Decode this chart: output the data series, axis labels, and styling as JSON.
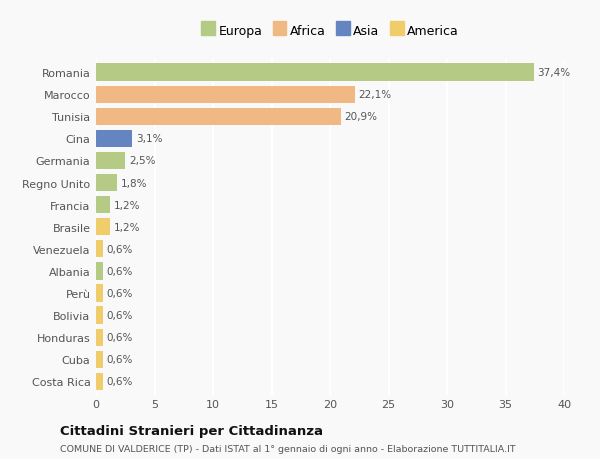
{
  "countries": [
    "Romania",
    "Marocco",
    "Tunisia",
    "Cina",
    "Germania",
    "Regno Unito",
    "Francia",
    "Brasile",
    "Venezuela",
    "Albania",
    "Perù",
    "Bolivia",
    "Honduras",
    "Cuba",
    "Costa Rica"
  ],
  "values": [
    37.4,
    22.1,
    20.9,
    3.1,
    2.5,
    1.8,
    1.2,
    1.2,
    0.6,
    0.6,
    0.6,
    0.6,
    0.6,
    0.6,
    0.6
  ],
  "labels": [
    "37,4%",
    "22,1%",
    "20,9%",
    "3,1%",
    "2,5%",
    "1,8%",
    "1,2%",
    "1,2%",
    "0,6%",
    "0,6%",
    "0,6%",
    "0,6%",
    "0,6%",
    "0,6%",
    "0,6%"
  ],
  "continents": [
    "Europa",
    "Africa",
    "Africa",
    "Asia",
    "Europa",
    "Europa",
    "Europa",
    "America",
    "America",
    "Europa",
    "America",
    "America",
    "America",
    "America",
    "America"
  ],
  "colors": {
    "Europa": "#b5cb85",
    "Africa": "#f0b882",
    "Asia": "#6585c0",
    "America": "#f0cc6a"
  },
  "xlim": [
    0,
    40
  ],
  "xticks": [
    0,
    5,
    10,
    15,
    20,
    25,
    30,
    35,
    40
  ],
  "title": "Cittadini Stranieri per Cittadinanza",
  "subtitle": "COMUNE DI VALDERICE (TP) - Dati ISTAT al 1° gennaio di ogni anno - Elaborazione TUTTITALIA.IT",
  "bg_color": "#f9f9f9",
  "bar_height": 0.78,
  "bar_alpha": 1.0,
  "legend_order": [
    "Europa",
    "Africa",
    "Asia",
    "America"
  ]
}
